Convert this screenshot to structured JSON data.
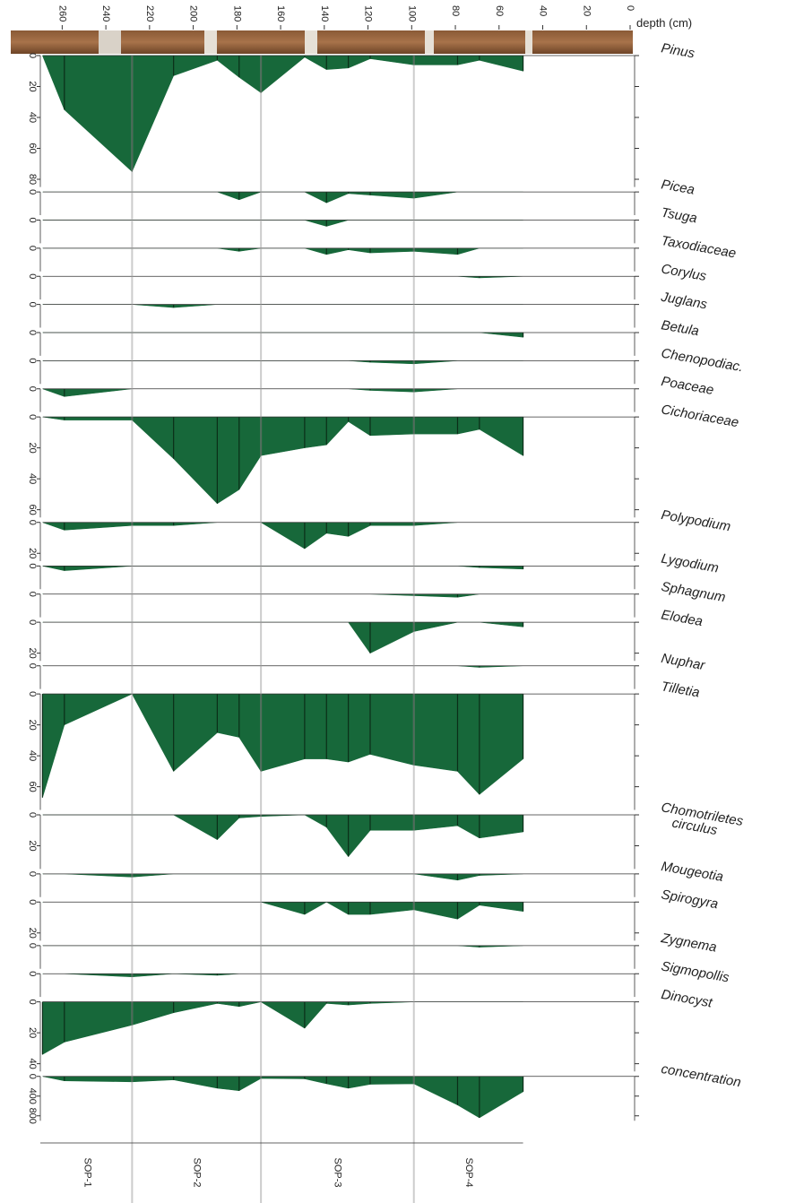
{
  "chart_data": {
    "type": "area",
    "x_label": "depth (cm)",
    "x": [
      269,
      259,
      228,
      209,
      189,
      179,
      169,
      149,
      139,
      129,
      119,
      99,
      79,
      69,
      49
    ],
    "xlim": [
      0,
      270
    ],
    "xticks": [
      0,
      20,
      40,
      60,
      80,
      100,
      120,
      140,
      160,
      180,
      200,
      220,
      240,
      260
    ],
    "zones": [
      "SOP-1",
      "SOP-2",
      "SOP-3",
      "SOP-4"
    ],
    "series": [
      {
        "name": "Pinus",
        "color": "#17683a",
        "ylim": [
          0,
          85
        ],
        "yticks": [
          0,
          20,
          40,
          60,
          80
        ],
        "values": [
          0,
          35,
          75,
          13,
          3,
          14,
          24,
          1,
          9,
          8,
          2,
          6,
          6,
          3,
          10
        ]
      },
      {
        "name": "Picea",
        "color": "#17683a",
        "ylim": [
          0,
          15
        ],
        "yticks": [
          0
        ],
        "values": [
          0,
          0,
          0,
          0,
          0,
          5,
          0,
          0,
          7,
          1,
          2,
          4,
          0,
          0,
          0
        ]
      },
      {
        "name": "Tsuga",
        "color": "#17683a",
        "ylim": [
          0,
          15
        ],
        "yticks": [
          0
        ],
        "values": [
          0,
          0,
          0,
          0,
          0,
          0,
          0,
          0,
          4,
          0,
          0,
          0,
          0,
          0,
          0
        ]
      },
      {
        "name": "Taxodiaceae",
        "color": "#17683a",
        "ylim": [
          0,
          15
        ],
        "yticks": [
          0
        ],
        "values": [
          0,
          0,
          0,
          0,
          0,
          2,
          0,
          0,
          4,
          1,
          3,
          2,
          4,
          0,
          0
        ]
      },
      {
        "name": "Corylus",
        "color": "#17683a",
        "ylim": [
          0,
          15
        ],
        "yticks": [
          0
        ],
        "values": [
          0,
          0,
          0,
          0,
          0,
          0,
          0,
          0,
          0,
          0,
          0,
          0,
          0,
          1,
          0
        ]
      },
      {
        "name": "Juglans",
        "color": "#17683a",
        "ylim": [
          0,
          15
        ],
        "yticks": [
          0
        ],
        "values": [
          0,
          0,
          0,
          2,
          0,
          0,
          0,
          0,
          0,
          0,
          0,
          0,
          0,
          0,
          0
        ]
      },
      {
        "name": "Betula",
        "color": "#17683a",
        "ylim": [
          0,
          15
        ],
        "yticks": [
          0
        ],
        "values": [
          0,
          0,
          0,
          0,
          0,
          0,
          0,
          0,
          0,
          0,
          0,
          0,
          0,
          0,
          3
        ]
      },
      {
        "name": "Chenopodiac.",
        "color": "#17683a",
        "ylim": [
          0,
          15
        ],
        "yticks": [
          0
        ],
        "values": [
          0,
          0,
          0,
          0,
          0,
          0,
          0,
          0,
          0,
          0,
          1,
          2,
          0,
          0,
          0
        ]
      },
      {
        "name": "Poaceae",
        "color": "#17683a",
        "ylim": [
          0,
          15
        ],
        "yticks": [
          0
        ],
        "values": [
          0,
          5,
          0,
          0,
          0,
          0,
          0,
          0,
          0,
          0,
          1,
          2,
          0,
          0,
          0
        ]
      },
      {
        "name": "Cichoriaceae",
        "color": "#17683a",
        "ylim": [
          0,
          65
        ],
        "yticks": [
          0,
          20,
          40,
          60
        ],
        "values": [
          0,
          2,
          2,
          27,
          56,
          47,
          25,
          20,
          18,
          3,
          12,
          11,
          11,
          8,
          25
        ]
      },
      {
        "name": "Polypodium",
        "color": "#17683a",
        "ylim": [
          0,
          25
        ],
        "yticks": [
          0,
          20
        ],
        "values": [
          0,
          5,
          2,
          2,
          0,
          0,
          0,
          17,
          7,
          9,
          2,
          2,
          0,
          0,
          0
        ]
      },
      {
        "name": "Lygodium",
        "color": "#17683a",
        "ylim": [
          0,
          15
        ],
        "yticks": [
          0
        ],
        "values": [
          0,
          3,
          0,
          0,
          0,
          0,
          0,
          0,
          0,
          0,
          0,
          0,
          0,
          1,
          2
        ]
      },
      {
        "name": "Sphagnum",
        "color": "#17683a",
        "ylim": [
          0,
          15
        ],
        "yticks": [
          0
        ],
        "values": [
          0,
          0,
          0,
          0,
          0,
          0,
          0,
          0,
          0,
          0,
          0,
          1,
          2,
          0,
          0
        ]
      },
      {
        "name": "Elodea",
        "color": "#17683a",
        "ylim": [
          0,
          25
        ],
        "yticks": [
          0,
          20
        ],
        "values": [
          0,
          0,
          0,
          0,
          0,
          0,
          0,
          0,
          0,
          0,
          20,
          6,
          0,
          0,
          3
        ]
      },
      {
        "name": "Nuphar",
        "color": "#17683a",
        "ylim": [
          0,
          15
        ],
        "yticks": [
          0
        ],
        "values": [
          0,
          0,
          0,
          0,
          0,
          0,
          0,
          0,
          0,
          0,
          0,
          0,
          0,
          1,
          0
        ]
      },
      {
        "name": "Tilletia",
        "color": "#17683a",
        "ylim": [
          0,
          75
        ],
        "yticks": [
          0,
          20,
          40,
          60
        ],
        "values": [
          67,
          20,
          0,
          50,
          25,
          28,
          50,
          42,
          42,
          44,
          39,
          46,
          50,
          65,
          42
        ]
      },
      {
        "name": "Chomotriletes circulus",
        "color": "#17683a",
        "ylim": [
          0,
          35
        ],
        "yticks": [
          0,
          20
        ],
        "values": [
          0,
          0,
          0,
          0,
          16,
          2,
          1,
          0,
          8,
          27,
          10,
          10,
          7,
          15,
          11
        ]
      },
      {
        "name": "Mougeotia",
        "color": "#17683a",
        "ylim": [
          0,
          15
        ],
        "yticks": [
          0
        ],
        "values": [
          0,
          0,
          2,
          0,
          0,
          0,
          0,
          0,
          0,
          0,
          0,
          0,
          4,
          1,
          0
        ]
      },
      {
        "name": "Spirogyra",
        "color": "#17683a",
        "ylim": [
          0,
          25
        ],
        "yticks": [
          0,
          20
        ],
        "values": [
          0,
          0,
          0,
          0,
          0,
          0,
          0,
          8,
          0,
          8,
          8,
          5,
          11,
          2,
          6
        ]
      },
      {
        "name": "Zygnema",
        "color": "#17683a",
        "ylim": [
          0,
          15
        ],
        "yticks": [
          0
        ],
        "values": [
          0,
          0,
          0,
          0,
          0,
          0,
          0,
          0,
          0,
          0,
          0,
          0,
          0,
          1,
          0
        ]
      },
      {
        "name": "Sigmopollis",
        "color": "#17683a",
        "ylim": [
          0,
          15
        ],
        "yticks": [
          0
        ],
        "values": [
          0,
          0,
          2,
          0,
          1,
          0,
          0,
          0,
          0,
          0,
          0,
          0,
          0,
          0,
          0
        ]
      },
      {
        "name": "Dinocyst",
        "color": "#17683a",
        "ylim": [
          0,
          45
        ],
        "yticks": [
          0,
          20,
          40
        ],
        "values": [
          34,
          26,
          15,
          7,
          1,
          3,
          0,
          17,
          1,
          2,
          1,
          0,
          0,
          0,
          0
        ]
      },
      {
        "name": "concentration",
        "color": "#17683a",
        "ylim": [
          0,
          900
        ],
        "yticks": [
          0,
          400,
          800
        ],
        "values": [
          0,
          90,
          110,
          70,
          240,
          290,
          40,
          50,
          150,
          240,
          160,
          150,
          580,
          840,
          310
        ]
      }
    ]
  }
}
